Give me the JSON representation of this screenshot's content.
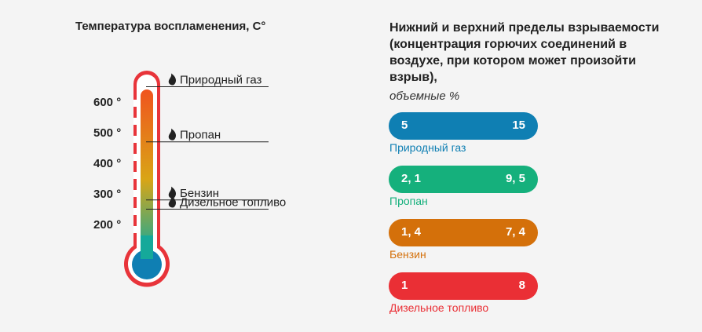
{
  "left_title": "Температура воспламенения, С°",
  "right_title": "Нижний и верхний пределы взрываемости (концентрация горючих соединений в воздухе, при котором может произойти взрыв),",
  "right_subtitle": "объемные %",
  "colors": {
    "thermo_frame": "#e8343a",
    "bulb": "#0f7fb3",
    "gradient_top": "#f0541e",
    "gradient_mid": "#d9a516",
    "gradient_bottom": "#15a99a",
    "pointer": "#222222",
    "background": "#f4f4f4"
  },
  "chart_data": [
    {
      "type": "thermometer",
      "title": "Температура воспламенения, С°",
      "ticks": [
        {
          "value": 600,
          "label": "600 °"
        },
        {
          "value": 500,
          "label": "500 °"
        },
        {
          "value": 400,
          "label": "400 °"
        },
        {
          "value": 300,
          "label": "300 °"
        },
        {
          "value": 200,
          "label": "200 °"
        }
      ],
      "markers": [
        {
          "name": "Природный газ",
          "value": 650,
          "icon": "flame-icon"
        },
        {
          "name": "Пропан",
          "value": 470,
          "icon": "flame-icon"
        },
        {
          "name": "Бензин",
          "value": 280,
          "icon": "flame-icon"
        },
        {
          "name": "Дизельное топливо",
          "value": 250,
          "icon": "flame-icon"
        }
      ]
    },
    {
      "type": "range",
      "title": "Нижний и верхний пределы взрываемости (концентрация горючих соединений в воздухе, при котором может произойти взрыв),",
      "unit": "объемные %",
      "series": [
        {
          "name": "Природный газ",
          "low_label": "5",
          "high_label": "15",
          "low": 5,
          "high": 15,
          "color": "#0f7fb3"
        },
        {
          "name": "Пропан",
          "low_label": "2, 1",
          "high_label": "9, 5",
          "low": 2.1,
          "high": 9.5,
          "color": "#15b07c"
        },
        {
          "name": "Бензин",
          "low_label": "1, 4",
          "high_label": "7, 4",
          "low": 1.4,
          "high": 7.4,
          "color": "#d4700a"
        },
        {
          "name": "Дизельное топливо",
          "low_label": "1",
          "high_label": "8",
          "low": 1,
          "high": 8,
          "color": "#ea2f35"
        }
      ]
    }
  ]
}
